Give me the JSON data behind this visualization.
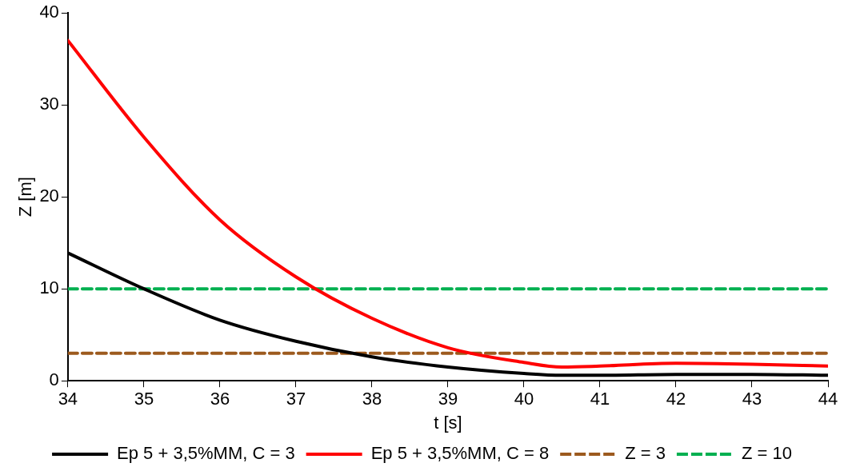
{
  "chart_data": {
    "type": "line",
    "xlabel": "t [s]",
    "ylabel": "Z [m]",
    "xlim": [
      34,
      44
    ],
    "xticks": [
      34,
      35,
      36,
      37,
      38,
      39,
      40,
      41,
      42,
      43,
      44
    ],
    "ylim": [
      0,
      40
    ],
    "yticks": [
      0,
      10,
      20,
      30,
      40
    ],
    "grid": false,
    "legend": "bottom",
    "marker": "none",
    "series": [
      {
        "name": "Ep 5 + 3,5%MM, C = 3",
        "color": "#000000",
        "line_style": "solid",
        "x": [
          34,
          35,
          36,
          37,
          38,
          39,
          40,
          40.5,
          41,
          42,
          43,
          44
        ],
        "values": [
          13.9,
          10,
          6.6,
          4.3,
          2.6,
          1.5,
          0.8,
          0.6,
          0.6,
          0.7,
          0.7,
          0.6
        ]
      },
      {
        "name": "Ep 5 + 3,5%MM, C = 8",
        "color": "#ff0000",
        "line_style": "solid",
        "x": [
          34,
          35,
          36,
          37,
          38,
          39,
          40,
          40.5,
          41,
          42,
          43,
          44
        ],
        "values": [
          37,
          26.5,
          17.5,
          11.3,
          6.8,
          3.6,
          2,
          1.5,
          1.6,
          1.9,
          1.8,
          1.6
        ]
      },
      {
        "name": "Z = 3",
        "color": "#9c5a1e",
        "line_style": "dashed",
        "x": [
          34,
          44
        ],
        "values": [
          3,
          3
        ]
      },
      {
        "name": "Z = 10",
        "color": "#00b050",
        "line_style": "dashed",
        "x": [
          34,
          44
        ],
        "values": [
          10,
          10
        ]
      }
    ]
  }
}
